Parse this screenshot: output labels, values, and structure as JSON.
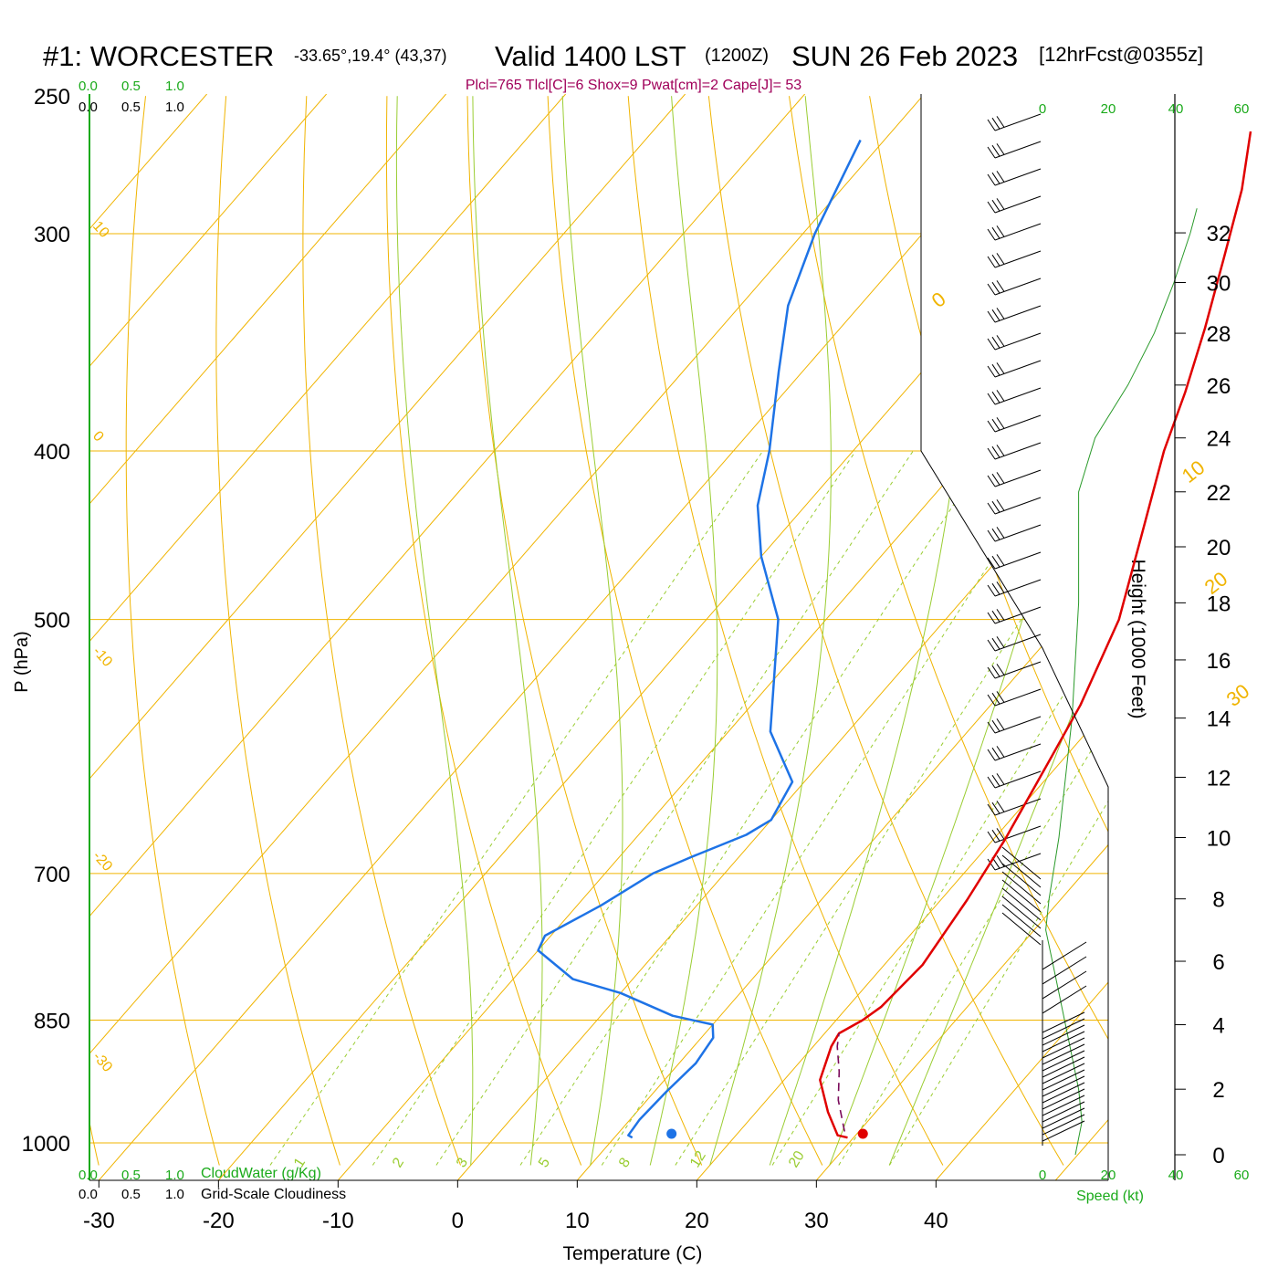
{
  "header": {
    "station": "#1: WORCESTER",
    "coords": "-33.65°,19.4° (43,37)",
    "valid": "Valid 1400 LST",
    "zulu": "(1200Z)",
    "date": "SUN 26 Feb 2023",
    "forecast": "[12hrFcst@0355z]",
    "params": "Plcl=765 Tlcl[C]=6 Shox=9 Pwat[cm]=2 Cape[J]= 53"
  },
  "scales": {
    "cloudwater_ticks": [
      "0.0",
      "0.5",
      "1.0"
    ],
    "cloudiness_ticks": [
      "0.0",
      "0.5",
      "1.0"
    ],
    "cloudwater_label": "CloudWater (g/Kg)",
    "cloudiness_label": "Grid-Scale Cloudiness",
    "speed_ticks": [
      "0",
      "20",
      "40",
      "60"
    ],
    "speed_label": "Speed (kt)"
  },
  "colors": {
    "isotherm": "#f0b400",
    "dry_adiabat": "#f0b400",
    "moist_adiabat": "#9acd32",
    "mixing_ratio": "#9acd32",
    "temperature": "#e00000",
    "dewpoint": "#1e73e6",
    "parcel": "#7a0a5a",
    "green_text": "#1aaa1a",
    "params_text": "#a0005a",
    "speed_line": "#2a9a2a"
  },
  "chart_data": {
    "type": "line",
    "title": "#1: WORCESTER Valid 1400 LST (1200Z) SUN 26 Feb 2023",
    "xlabel": "Temperature (C)",
    "ylabel": "P (hPa)",
    "y2label": "Height (1000 Feet)",
    "xlim": [
      -37,
      50
    ],
    "ylim": [
      1030,
      250
    ],
    "x_ticks": [
      "-30",
      "-20",
      "-10",
      "0",
      "10",
      "20",
      "30",
      "40"
    ],
    "x_tick_values": [
      -30,
      -20,
      -10,
      0,
      10,
      20,
      30,
      40
    ],
    "pressure_ticks": [
      1000,
      850,
      700,
      500,
      400,
      300,
      250
    ],
    "height_ticks": [
      0,
      2,
      4,
      6,
      8,
      10,
      12,
      14,
      16,
      18,
      20,
      22,
      24,
      26,
      28,
      30,
      32
    ],
    "isotherm_labels": [
      "0",
      "10",
      "20",
      "30"
    ],
    "dry_adiabat_labels": [
      "10",
      "0",
      "-10",
      "-20",
      "-30"
    ],
    "mixing_ratio_labels": [
      "1",
      "2",
      "3",
      "5",
      "8",
      "12",
      "20"
    ],
    "series": [
      {
        "name": "Temperature",
        "points": [
          [
            29.5,
            993
          ],
          [
            28.5,
            990
          ],
          [
            26,
            960
          ],
          [
            23,
            920
          ],
          [
            21.5,
            880
          ],
          [
            21.2,
            865
          ],
          [
            22.2,
            850
          ],
          [
            22.8,
            835
          ],
          [
            23,
            812
          ],
          [
            23.2,
            790
          ],
          [
            22.2,
            725
          ],
          [
            21,
            670
          ],
          [
            19.5,
            620
          ],
          [
            17.5,
            560
          ],
          [
            14.5,
            500
          ],
          [
            10.5,
            450
          ],
          [
            6,
            400
          ],
          [
            3.5,
            370
          ],
          [
            0.5,
            340
          ],
          [
            -3,
            310
          ],
          [
            -6.5,
            283
          ],
          [
            -10,
            262
          ]
        ]
      },
      {
        "name": "Dewpoint",
        "points": [
          [
            11.5,
            993
          ],
          [
            11,
            990
          ],
          [
            10.8,
            970
          ],
          [
            11,
            935
          ],
          [
            11.4,
            900
          ],
          [
            11,
            870
          ],
          [
            10,
            855
          ],
          [
            6,
            845
          ],
          [
            0,
            820
          ],
          [
            -5,
            805
          ],
          [
            -10,
            775
          ],
          [
            -10.5,
            760
          ],
          [
            -8,
            730
          ],
          [
            -6,
            700
          ],
          [
            -4,
            685
          ],
          [
            -1,
            665
          ],
          [
            0,
            652
          ],
          [
            -1,
            620
          ],
          [
            -6.5,
            580
          ],
          [
            -14,
            500
          ],
          [
            -20,
            460
          ],
          [
            -24,
            430
          ],
          [
            -27,
            400
          ],
          [
            -32,
            360
          ],
          [
            -36,
            330
          ],
          [
            -39,
            300
          ],
          [
            -42,
            265
          ]
        ]
      },
      {
        "name": "Parcel",
        "points": [
          [
            28.8,
            985
          ],
          [
            26,
            945
          ],
          [
            24,
            910
          ],
          [
            22,
            880
          ],
          [
            21.2,
            865
          ]
        ]
      }
    ],
    "surface_temperature": 30.5,
    "surface_dewpoint": 14.5,
    "wind_speed_profile_kt": [
      [
        0,
        10
      ],
      [
        1,
        12
      ],
      [
        2,
        11
      ],
      [
        3,
        9
      ],
      [
        4,
        7
      ],
      [
        5,
        5
      ],
      [
        6,
        3
      ],
      [
        7,
        1
      ],
      [
        8,
        2
      ],
      [
        10,
        5
      ],
      [
        14,
        9
      ],
      [
        18,
        11
      ],
      [
        22,
        11
      ],
      [
        24,
        16
      ],
      [
        26,
        26
      ],
      [
        28,
        34
      ],
      [
        30,
        40
      ],
      [
        32,
        45
      ],
      [
        33,
        47
      ]
    ]
  }
}
